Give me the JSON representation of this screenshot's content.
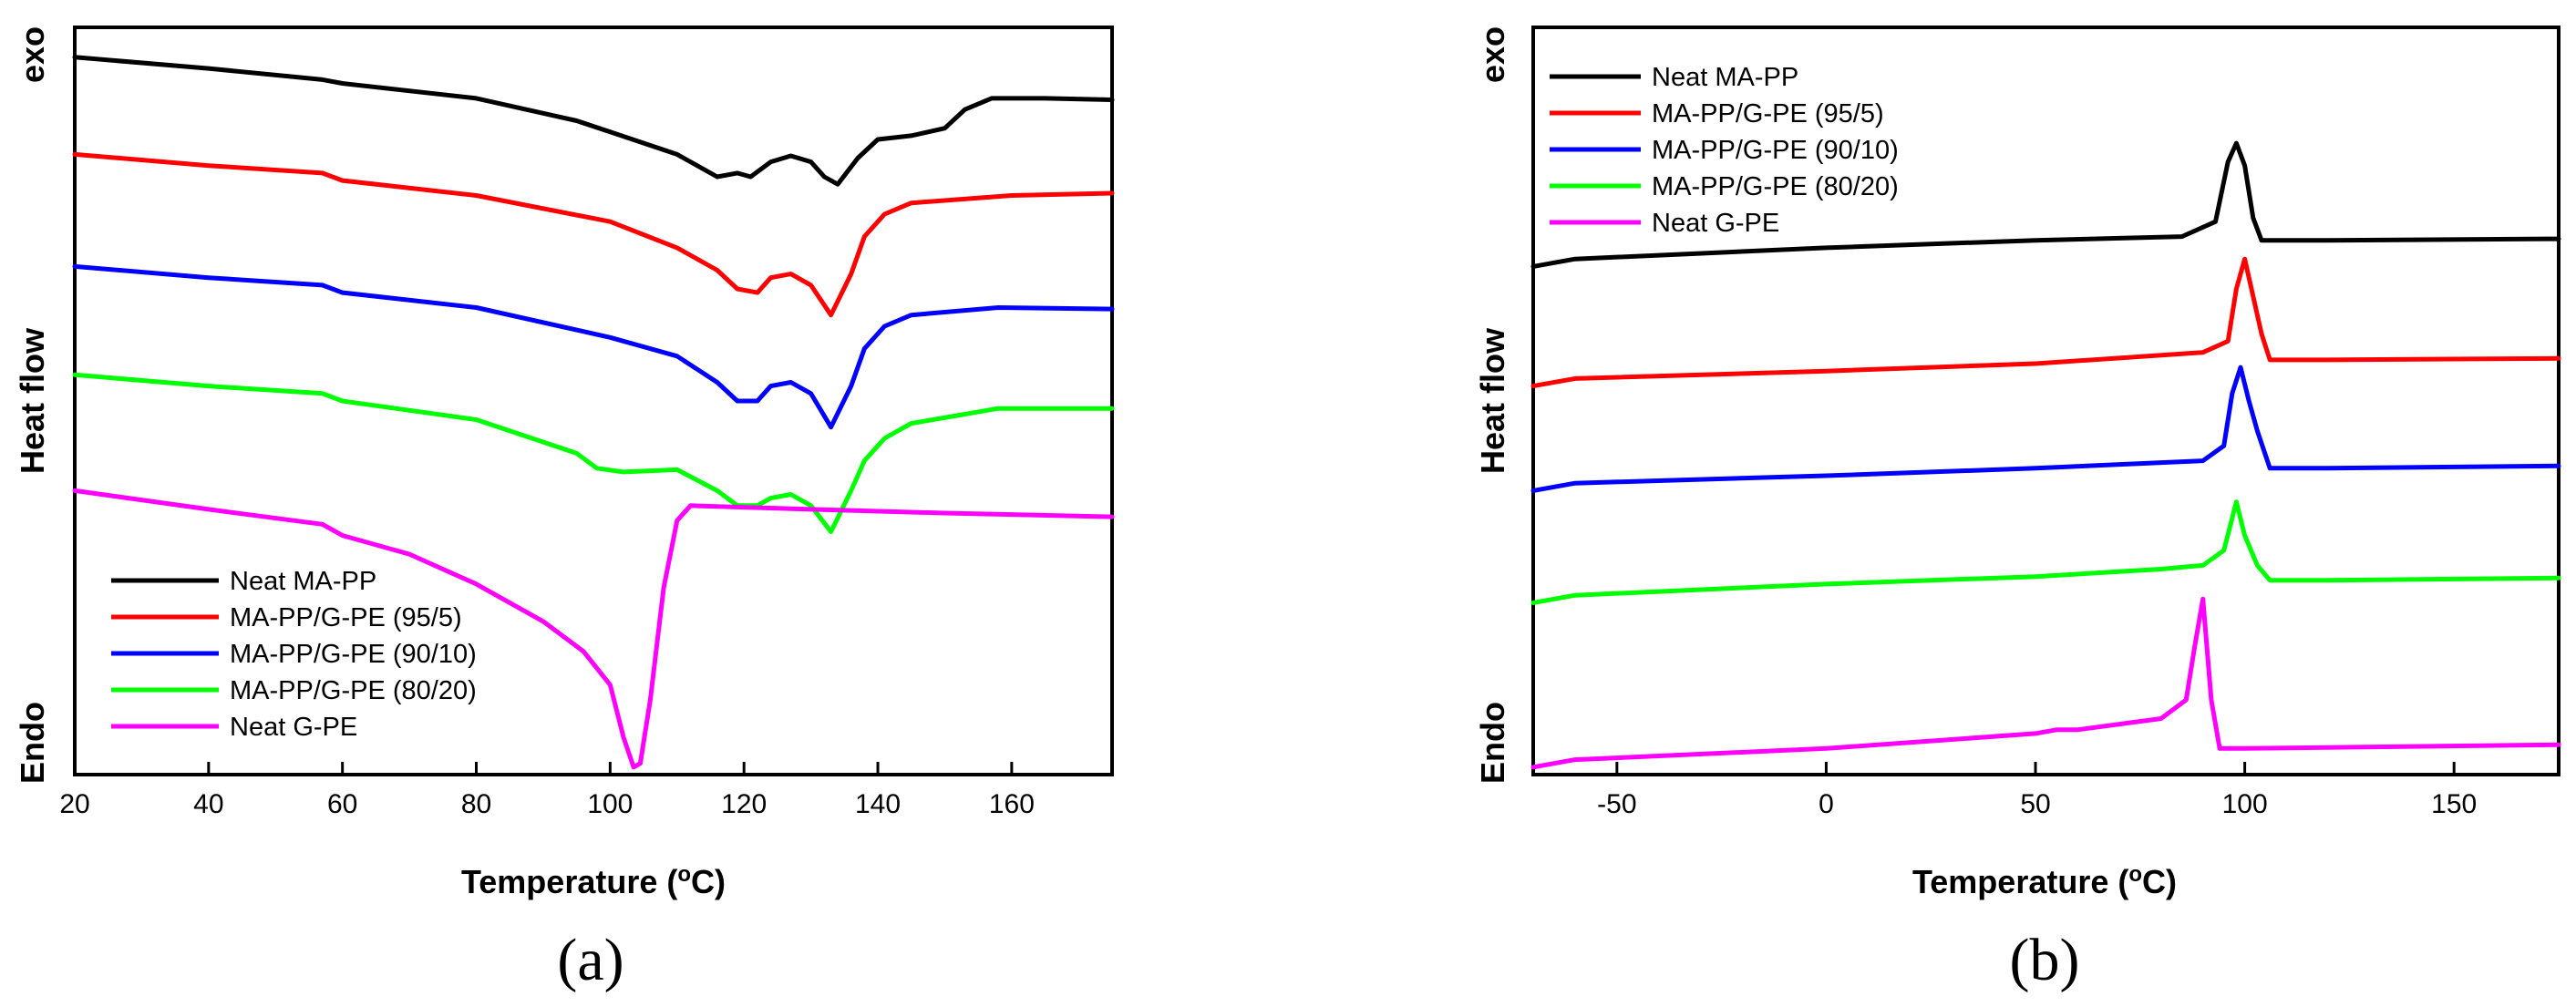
{
  "chart_data": [
    {
      "panel": "(a)",
      "type": "line",
      "xlabel": "Temperature (°C)",
      "ylabel": "Heat flow",
      "ylabel_top": "exo",
      "ylabel_bottom": "Endo",
      "xlim": [
        20,
        175
      ],
      "ylim": [
        0,
        100
      ],
      "xticks": [
        20,
        40,
        60,
        80,
        100,
        120,
        140,
        160
      ],
      "legend_position": "bottom-left",
      "series": [
        {
          "name": "Neat MA-PP",
          "color": "#000000",
          "x": [
            20,
            40,
            57,
            60,
            80,
            95,
            100,
            110,
            116,
            119,
            121,
            124,
            127,
            130,
            132,
            134,
            137,
            140,
            145,
            150,
            153,
            157,
            165,
            175
          ],
          "y": [
            96,
            94.5,
            93,
            92.5,
            90.5,
            87.5,
            86,
            83,
            80,
            80.5,
            80,
            82,
            82.8,
            82,
            80,
            79,
            82.5,
            85,
            85.5,
            86.5,
            89,
            90.5,
            90.5,
            90.3
          ]
        },
        {
          "name": "MA-PP/G-PE (95/5)",
          "color": "#ff0000",
          "x": [
            20,
            40,
            57,
            60,
            80,
            100,
            110,
            116,
            119,
            122,
            124,
            127,
            130,
            133,
            136,
            138,
            141,
            145,
            160,
            175
          ],
          "y": [
            83,
            81.5,
            80.5,
            79.5,
            77.5,
            74,
            70.5,
            67.5,
            65,
            64.5,
            66.5,
            67,
            65.5,
            61.5,
            67,
            72,
            75,
            76.5,
            77.5,
            77.8
          ]
        },
        {
          "name": "MA-PP/G-PE (90/10)",
          "color": "#0000ff",
          "x": [
            20,
            40,
            57,
            60,
            80,
            100,
            110,
            116,
            119,
            122,
            124,
            127,
            130,
            133,
            136,
            138,
            141,
            145,
            158,
            175
          ],
          "y": [
            68,
            66.5,
            65.5,
            64.5,
            62.5,
            58.5,
            56,
            52.5,
            50,
            50,
            52,
            52.5,
            51,
            46.5,
            52,
            57,
            60,
            61.5,
            62.5,
            62.3
          ]
        },
        {
          "name": "MA-PP/G-PE (80/20)",
          "color": "#00ff00",
          "x": [
            20,
            40,
            57,
            60,
            80,
            95,
            98,
            102,
            110,
            116,
            119,
            122,
            124,
            127,
            130,
            133,
            136,
            138,
            141,
            145,
            158,
            175
          ],
          "y": [
            53.5,
            52,
            51,
            50,
            47.5,
            43,
            41,
            40.5,
            40.8,
            38,
            36,
            36,
            37,
            37.5,
            36,
            32.5,
            38,
            42,
            45,
            47,
            49,
            49
          ]
        },
        {
          "name": "Neat G-PE",
          "color": "#ff00ff",
          "x": [
            20,
            40,
            57,
            60,
            70,
            80,
            90,
            96,
            100,
            102,
            103.5,
            104.5,
            106,
            108,
            110,
            112,
            130,
            150,
            175
          ],
          "y": [
            38,
            35.5,
            33.5,
            32,
            29.5,
            25.5,
            20.5,
            16.5,
            12,
            5,
            1,
            1.5,
            10,
            25,
            34,
            36,
            35.5,
            35,
            34.5
          ]
        }
      ]
    },
    {
      "panel": "(b)",
      "type": "line",
      "xlabel": "Temperature (°C)",
      "ylabel": "Heat flow",
      "ylabel_top": "exo",
      "ylabel_bottom": "Endo",
      "xlim": [
        -70,
        175
      ],
      "ylim": [
        0,
        100
      ],
      "xticks": [
        -50,
        0,
        50,
        100,
        150
      ],
      "legend_position": "top-left",
      "series": [
        {
          "name": "Neat MA-PP",
          "color": "#000000",
          "x": [
            -70,
            -60,
            0,
            50,
            85,
            93,
            96,
            98,
            100,
            102,
            104,
            120,
            175
          ],
          "y": [
            68,
            69,
            70.5,
            71.5,
            72,
            74,
            82,
            84.5,
            81.5,
            74.5,
            71.5,
            71.5,
            71.7
          ]
        },
        {
          "name": "MA-PP/G-PE (95/5)",
          "color": "#ff0000",
          "x": [
            -70,
            -60,
            0,
            50,
            90,
            96,
            98,
            100,
            102,
            104,
            106,
            120,
            175
          ],
          "y": [
            52,
            53,
            54,
            55,
            56.5,
            58,
            65,
            69,
            64,
            59,
            55.5,
            55.5,
            55.7
          ]
        },
        {
          "name": "MA-PP/G-PE (90/10)",
          "color": "#0000ff",
          "x": [
            -70,
            -60,
            0,
            50,
            90,
            95,
            97,
            99,
            101,
            103,
            106,
            120,
            175
          ],
          "y": [
            38,
            39,
            40,
            41,
            42,
            44,
            51,
            54.5,
            50,
            46,
            41,
            41,
            41.3
          ]
        },
        {
          "name": "MA-PP/G-PE (80/20)",
          "color": "#00ff00",
          "x": [
            -70,
            -60,
            0,
            50,
            80,
            90,
            95,
            98,
            100,
            103,
            106,
            120,
            175
          ],
          "y": [
            23,
            24,
            25.5,
            26.5,
            27.5,
            28,
            30,
            36.5,
            32,
            28,
            26,
            26,
            26.3
          ]
        },
        {
          "name": "Neat G-PE",
          "color": "#ff00ff",
          "x": [
            -70,
            -60,
            0,
            50,
            55,
            60,
            80,
            86,
            88,
            90,
            92,
            94,
            100,
            175
          ],
          "y": [
            1,
            2,
            3.5,
            5.5,
            6,
            6,
            7.5,
            10,
            17,
            23.5,
            10,
            3.5,
            3.5,
            4
          ]
        }
      ]
    }
  ],
  "panel_labels": [
    "(a)",
    "(b)"
  ]
}
